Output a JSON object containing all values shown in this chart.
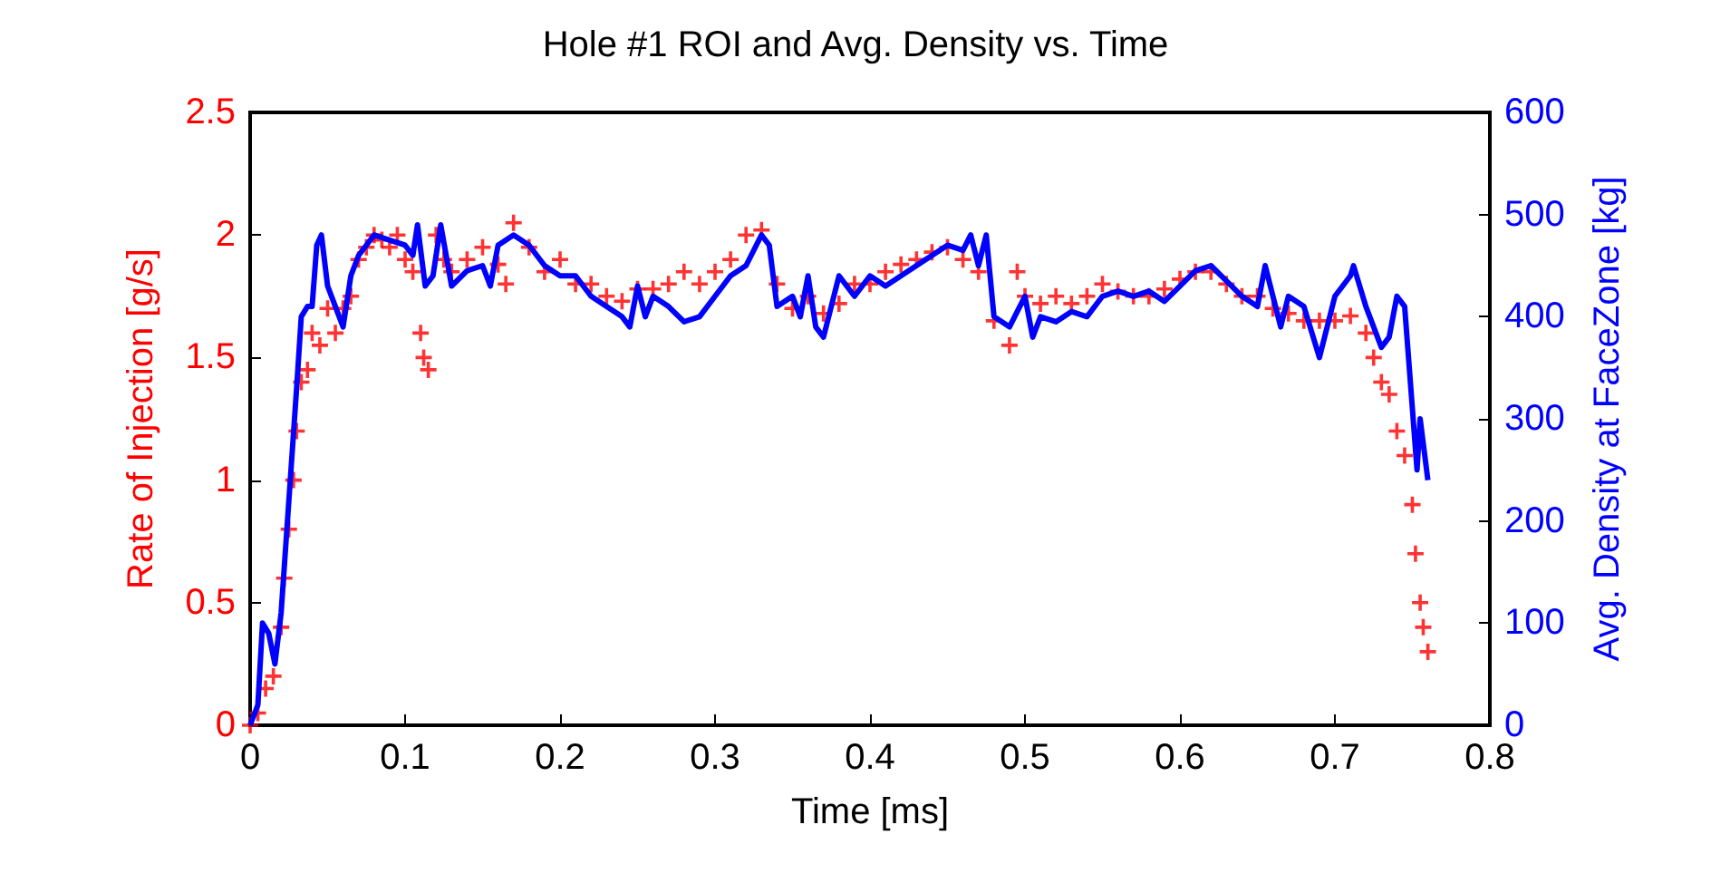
{
  "chart_data": {
    "type": "scatter",
    "title": "Hole #1 ROI and Avg. Density vs. Time",
    "xlabel": "Time [ms]",
    "ylabel": "Rate of Injection [g/s]",
    "y2label": "Avg. Density at FaceZone [kg]",
    "xlim": [
      0,
      0.8
    ],
    "xticks": [
      0,
      0.1,
      0.2,
      0.3,
      0.4,
      0.5,
      0.6,
      0.7,
      0.8
    ],
    "ylim": [
      0,
      2.5
    ],
    "yticks": [
      0,
      0.5,
      1,
      1.5,
      2,
      2.5
    ],
    "y2lim": [
      0,
      600
    ],
    "y2ticks": [
      0,
      100,
      200,
      300,
      400,
      500,
      600
    ],
    "grid": false,
    "series": [
      {
        "color": "#ff0000",
        "marker": "cross",
        "x": [
          0,
          0.005,
          0.01,
          0.015,
          0.02,
          0.022,
          0.025,
          0.028,
          0.03,
          0.033,
          0.037,
          0.04,
          0.045,
          0.05,
          0.055,
          0.06,
          0.065,
          0.07,
          0.075,
          0.08,
          0.085,
          0.09,
          0.095,
          0.1,
          0.105,
          0.11,
          0.112,
          0.115,
          0.12,
          0.125,
          0.13,
          0.14,
          0.15,
          0.16,
          0.165,
          0.17,
          0.18,
          0.19,
          0.2,
          0.21,
          0.22,
          0.23,
          0.24,
          0.25,
          0.26,
          0.27,
          0.28,
          0.29,
          0.3,
          0.31,
          0.32,
          0.33,
          0.34,
          0.35,
          0.36,
          0.37,
          0.38,
          0.39,
          0.4,
          0.41,
          0.42,
          0.43,
          0.44,
          0.45,
          0.46,
          0.47,
          0.48,
          0.49,
          0.495,
          0.5,
          0.51,
          0.52,
          0.53,
          0.54,
          0.55,
          0.56,
          0.57,
          0.58,
          0.59,
          0.6,
          0.61,
          0.62,
          0.63,
          0.64,
          0.65,
          0.66,
          0.67,
          0.68,
          0.69,
          0.7,
          0.71,
          0.72,
          0.725,
          0.73,
          0.735,
          0.74,
          0.745,
          0.75,
          0.752,
          0.755,
          0.757,
          0.76
        ],
        "values": [
          0,
          0.05,
          0.15,
          0.2,
          0.4,
          0.6,
          0.8,
          1.0,
          1.2,
          1.4,
          1.45,
          1.6,
          1.55,
          1.7,
          1.6,
          1.7,
          1.75,
          1.9,
          1.95,
          2.0,
          1.98,
          1.95,
          2.0,
          1.9,
          1.85,
          1.6,
          1.5,
          1.45,
          2.0,
          1.9,
          1.85,
          1.9,
          1.95,
          1.88,
          1.8,
          2.05,
          1.95,
          1.85,
          1.9,
          1.8,
          1.8,
          1.75,
          1.73,
          1.78,
          1.78,
          1.8,
          1.85,
          1.8,
          1.85,
          1.9,
          2.0,
          2.02,
          1.8,
          1.7,
          1.75,
          1.68,
          1.72,
          1.8,
          1.8,
          1.85,
          1.88,
          1.9,
          1.93,
          1.95,
          1.9,
          1.85,
          1.65,
          1.55,
          1.85,
          1.75,
          1.72,
          1.75,
          1.72,
          1.75,
          1.8,
          1.77,
          1.75,
          1.75,
          1.78,
          1.82,
          1.85,
          1.85,
          1.8,
          1.75,
          1.75,
          1.7,
          1.68,
          1.65,
          1.65,
          1.65,
          1.67,
          1.6,
          1.5,
          1.4,
          1.35,
          1.2,
          1.1,
          0.9,
          0.7,
          0.5,
          0.4,
          0.3
        ]
      },
      {
        "type": "line",
        "axis": "y2",
        "color": "#0000ff",
        "marker": "none",
        "line_style": "solid",
        "x": [
          0,
          0.005,
          0.008,
          0.012,
          0.016,
          0.02,
          0.025,
          0.03,
          0.033,
          0.037,
          0.04,
          0.043,
          0.046,
          0.05,
          0.055,
          0.06,
          0.065,
          0.07,
          0.08,
          0.09,
          0.1,
          0.105,
          0.108,
          0.113,
          0.118,
          0.123,
          0.13,
          0.14,
          0.15,
          0.155,
          0.16,
          0.17,
          0.18,
          0.19,
          0.2,
          0.21,
          0.22,
          0.23,
          0.24,
          0.245,
          0.25,
          0.255,
          0.26,
          0.27,
          0.28,
          0.29,
          0.3,
          0.31,
          0.32,
          0.33,
          0.335,
          0.34,
          0.35,
          0.355,
          0.36,
          0.365,
          0.37,
          0.38,
          0.39,
          0.4,
          0.41,
          0.42,
          0.43,
          0.44,
          0.45,
          0.46,
          0.465,
          0.47,
          0.475,
          0.48,
          0.49,
          0.5,
          0.505,
          0.51,
          0.52,
          0.53,
          0.54,
          0.55,
          0.56,
          0.57,
          0.58,
          0.59,
          0.6,
          0.61,
          0.62,
          0.63,
          0.64,
          0.65,
          0.655,
          0.66,
          0.665,
          0.67,
          0.68,
          0.69,
          0.7,
          0.71,
          0.712,
          0.72,
          0.73,
          0.735,
          0.74,
          0.745,
          0.75,
          0.753,
          0.755,
          0.76
        ],
        "values": [
          0,
          20,
          100,
          90,
          60,
          110,
          220,
          330,
          400,
          410,
          410,
          470,
          480,
          430,
          410,
          390,
          440,
          460,
          480,
          475,
          470,
          460,
          490,
          430,
          440,
          490,
          430,
          445,
          450,
          430,
          470,
          480,
          470,
          450,
          440,
          440,
          420,
          410,
          400,
          390,
          430,
          400,
          420,
          410,
          395,
          400,
          420,
          440,
          450,
          480,
          470,
          410,
          420,
          400,
          440,
          390,
          380,
          440,
          420,
          440,
          430,
          440,
          450,
          460,
          470,
          465,
          480,
          450,
          480,
          400,
          390,
          420,
          380,
          400,
          395,
          405,
          400,
          420,
          425,
          420,
          425,
          415,
          430,
          445,
          450,
          435,
          420,
          410,
          450,
          420,
          390,
          420,
          410,
          360,
          420,
          440,
          450,
          410,
          370,
          380,
          420,
          410,
          310,
          250,
          300,
          240
        ]
      }
    ]
  }
}
